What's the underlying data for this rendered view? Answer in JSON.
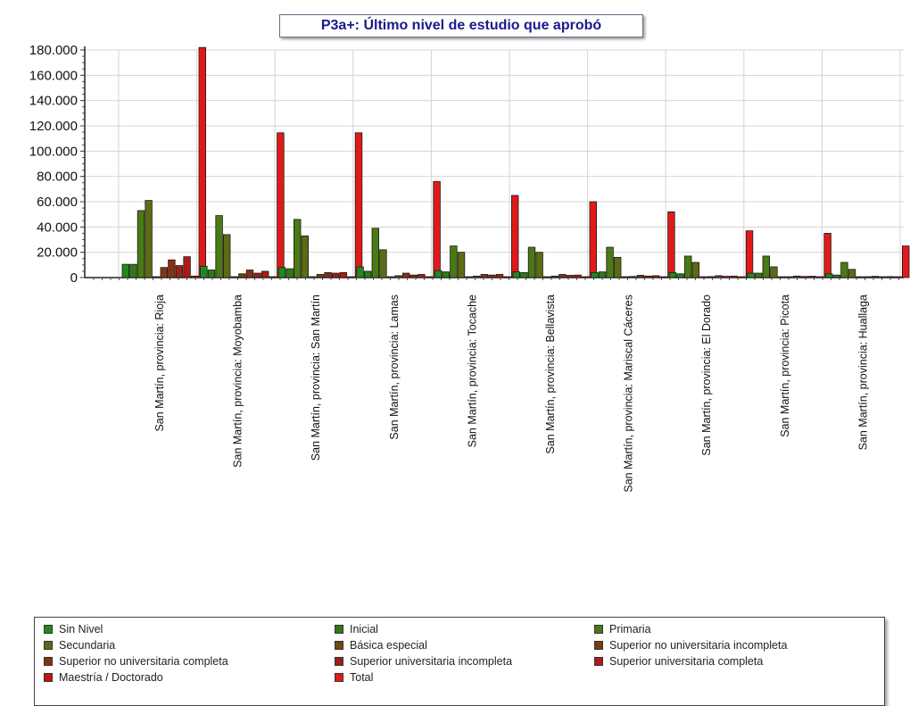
{
  "chart_data": {
    "type": "bar",
    "title": "P3a+: Último nivel de estudio que aprobó",
    "ylim": [
      0,
      180000
    ],
    "yticks": [
      "0",
      "20.000",
      "40.000",
      "60.000",
      "80.000",
      "100.000",
      "120.000",
      "140.000",
      "160.000",
      "180.000"
    ],
    "grid": true,
    "legend_position": "bottom",
    "categories": [
      "San Martín, provincia: Rioja",
      "San Martín, provincia: Moyobamba",
      "San Martín, provincia: San Martín",
      "San Martín, provincia: Lamas",
      "San Martín, provincia: Tocache",
      "San Martín, provincia: Bellavista",
      "San Martín, provincia: Mariscal Cáceres",
      "San Martín, provincia: El Dorado",
      "San Martín, provincia: Picota",
      "San Martín, provincia: Huallaga"
    ],
    "series": [
      {
        "name": "Sin Nivel",
        "color": "#1e8a1e",
        "values": [
          10500,
          9000,
          8000,
          8500,
          5500,
          4500,
          4000,
          4000,
          3500,
          3000
        ]
      },
      {
        "name": "Inicial",
        "color": "#2f7a17",
        "values": [
          10500,
          6000,
          7000,
          5000,
          4500,
          4000,
          4500,
          3000,
          3500,
          2000
        ]
      },
      {
        "name": "Primaria",
        "color": "#4a7a14",
        "values": [
          53000,
          49000,
          46000,
          39000,
          25000,
          24000,
          24000,
          17000,
          17000,
          12000
        ]
      },
      {
        "name": "Secundaria",
        "color": "#5e6b16",
        "values": [
          61000,
          34000,
          33000,
          22000,
          20000,
          20000,
          16000,
          12000,
          8500,
          6500
        ]
      },
      {
        "name": "Básica especial",
        "color": "#6b4a14",
        "values": [
          400,
          300,
          300,
          200,
          150,
          150,
          100,
          100,
          100,
          80
        ]
      },
      {
        "name": "Superior no universitaria incompleta",
        "color": "#7a3a14",
        "values": [
          8000,
          3000,
          2500,
          1500,
          1200,
          1200,
          900,
          800,
          600,
          500
        ]
      },
      {
        "name": "Superior no universitaria completa",
        "color": "#8a2f14",
        "values": [
          14000,
          6000,
          4000,
          3500,
          2500,
          2500,
          1800,
          1500,
          1200,
          1000
        ]
      },
      {
        "name": "Superior universitaria incompleta",
        "color": "#9a2414",
        "values": [
          9500,
          3500,
          3500,
          2000,
          2000,
          1800,
          1200,
          1000,
          900,
          700
        ]
      },
      {
        "name": "Superior universitaria completa",
        "color": "#b01a14",
        "values": [
          16500,
          5000,
          4000,
          2500,
          2500,
          2000,
          1500,
          1200,
          1100,
          800
        ]
      },
      {
        "name": "Maestría / Doctorado",
        "color": "#c01414",
        "values": [
          1200,
          500,
          600,
          300,
          250,
          250,
          200,
          150,
          150,
          100
        ]
      },
      {
        "name": "Total",
        "color": "#e01a1a",
        "values": [
          182000,
          114500,
          114500,
          76000,
          65000,
          60000,
          52000,
          37000,
          35000,
          25000
        ]
      }
    ]
  }
}
